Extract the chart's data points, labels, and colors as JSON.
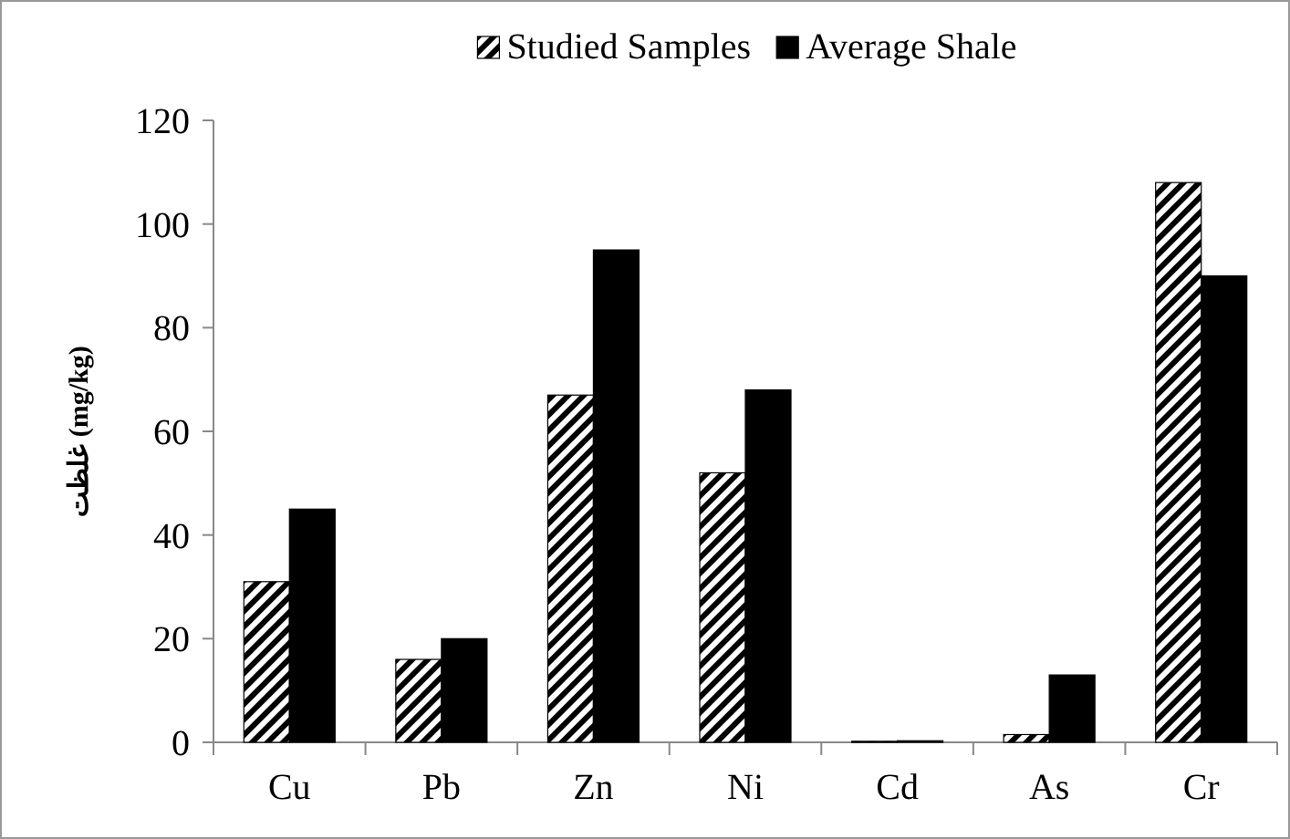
{
  "chart_data": {
    "type": "bar",
    "ylabel": "غلظت (mg/kg)",
    "categories": [
      "Cu",
      "Pb",
      "Zn",
      "Ni",
      "Cd",
      "As",
      "Cr"
    ],
    "series": [
      {
        "name": "Studied Samples",
        "color": "#000000",
        "values": [
          31,
          16,
          67,
          52,
          0.2,
          1.5,
          108
        ]
      },
      {
        "name": "Average Shale",
        "color": "#000000",
        "values": [
          45,
          20,
          95,
          68,
          0.3,
          13,
          90
        ]
      }
    ],
    "ylim": [
      0,
      120
    ],
    "yticks": [
      0,
      20,
      40,
      60,
      80,
      100,
      120
    ],
    "legend": "top"
  }
}
